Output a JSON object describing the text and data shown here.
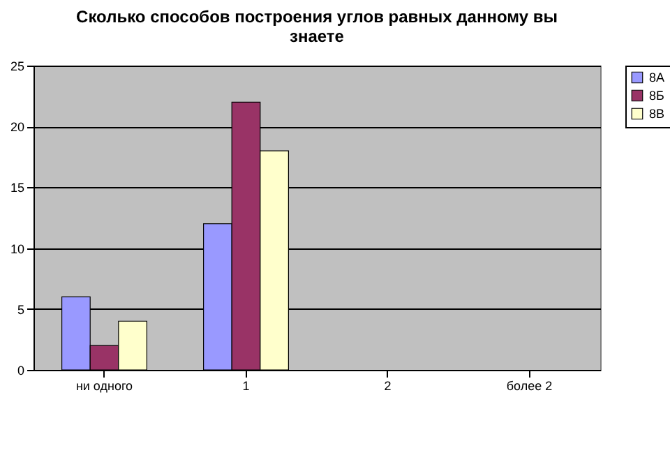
{
  "chart_data": {
    "type": "bar",
    "title": "Сколько способов построения углов равных данному вы знаете",
    "categories": [
      "ни одного",
      "1",
      "2",
      "более 2"
    ],
    "series": [
      {
        "name": "8А",
        "color": "#9999ff",
        "values": [
          6,
          12,
          0,
          0
        ]
      },
      {
        "name": "8Б",
        "color": "#993366",
        "values": [
          2,
          22,
          0,
          0
        ]
      },
      {
        "name": "8В",
        "color": "#ffffcc",
        "values": [
          4,
          18,
          0,
          0
        ]
      }
    ],
    "ylim": [
      0,
      25
    ],
    "yticks": [
      0,
      5,
      10,
      15,
      20,
      25
    ],
    "grid": "y",
    "legend": "right"
  }
}
